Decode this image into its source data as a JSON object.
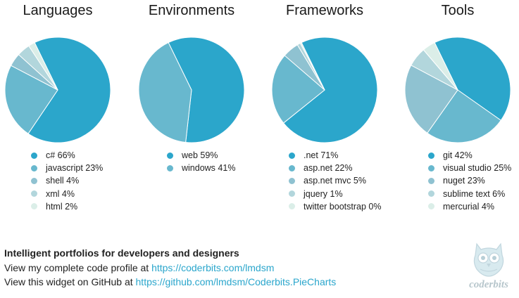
{
  "colors": [
    "#2ba6cb",
    "#68b8ce",
    "#8fc2d1",
    "#b2d6dc",
    "#dbeee8"
  ],
  "chart_data": [
    {
      "type": "pie",
      "title": "Languages",
      "labels": [
        "c# 66%",
        "javascript 23%",
        "shell 4%",
        "xml 4%",
        "html 2%"
      ],
      "values": [
        66,
        23,
        4,
        4,
        2
      ]
    },
    {
      "type": "pie",
      "title": "Environments",
      "labels": [
        "web 59%",
        "windows 41%"
      ],
      "values": [
        59,
        41
      ]
    },
    {
      "type": "pie",
      "title": "Frameworks",
      "labels": [
        ".net 71%",
        "asp.net 22%",
        "asp.net mvc 5%",
        "jquery 1%",
        "twitter bootstrap 0%"
      ],
      "values": [
        71,
        22,
        5,
        1,
        0.4
      ]
    },
    {
      "type": "pie",
      "title": "Tools",
      "labels": [
        "git 42%",
        "visual studio 25%",
        "nuget 23%",
        "sublime text 6%",
        "mercurial 4%"
      ],
      "values": [
        42,
        25,
        23,
        6,
        4
      ]
    }
  ],
  "footer": {
    "headline": "Intelligent portfolios for developers and designers",
    "profile_prefix": "View my complete code profile at ",
    "profile_link": "https://coderbits.com/lmdsm",
    "github_prefix": "View this widget on GitHub at ",
    "github_link": "https://github.com/lmdsm/Coderbits.PieCharts"
  },
  "logo": {
    "text": "coderbits",
    "icon": "owl-icon"
  }
}
